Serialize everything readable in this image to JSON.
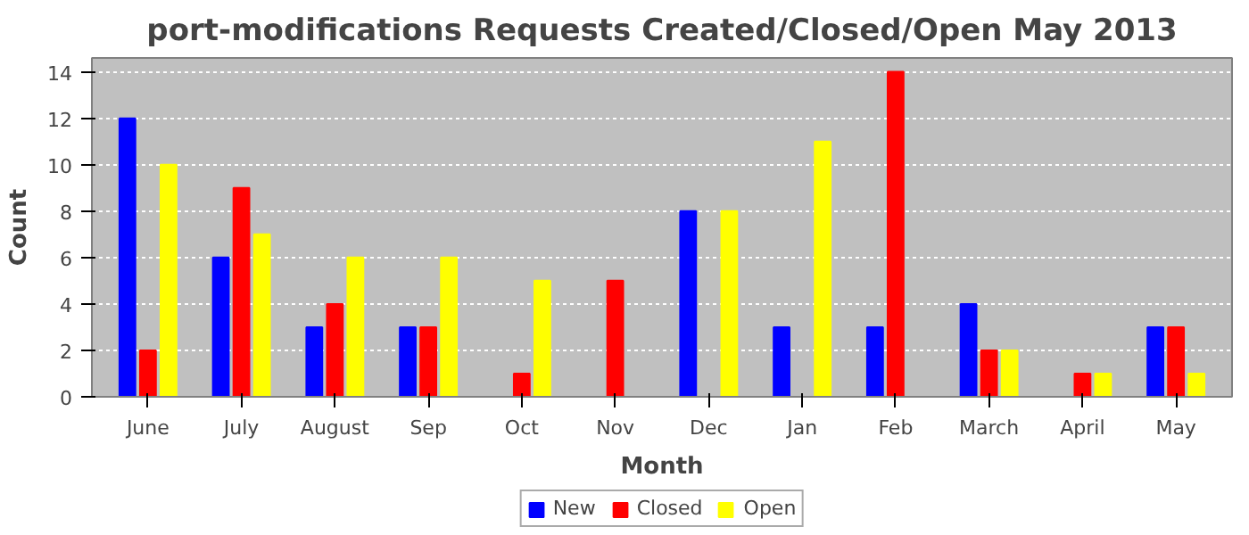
{
  "chart_data": {
    "type": "bar",
    "title": "port-modifications Requests Created/Closed/Open May 2013",
    "xlabel": "Month",
    "ylabel": "Count",
    "categories": [
      "June",
      "July",
      "August",
      "Sep",
      "Oct",
      "Nov",
      "Dec",
      "Jan",
      "Feb",
      "March",
      "April",
      "May"
    ],
    "series": [
      {
        "name": "New",
        "color": "#0000ff",
        "values": [
          12,
          6,
          3,
          3,
          0,
          0,
          8,
          3,
          3,
          4,
          0,
          3
        ]
      },
      {
        "name": "Closed",
        "color": "#ff0000",
        "values": [
          2,
          9,
          4,
          3,
          1,
          5,
          0,
          0,
          14,
          2,
          1,
          3
        ]
      },
      {
        "name": "Open",
        "color": "#ffff00",
        "values": [
          10,
          7,
          6,
          6,
          5,
          0,
          8,
          11,
          0,
          2,
          1,
          1
        ]
      }
    ],
    "ylim": [
      0,
      14.6
    ],
    "yticks": [
      0,
      2,
      4,
      6,
      8,
      10,
      12,
      14
    ],
    "grid": "y",
    "legend": "bottom"
  }
}
